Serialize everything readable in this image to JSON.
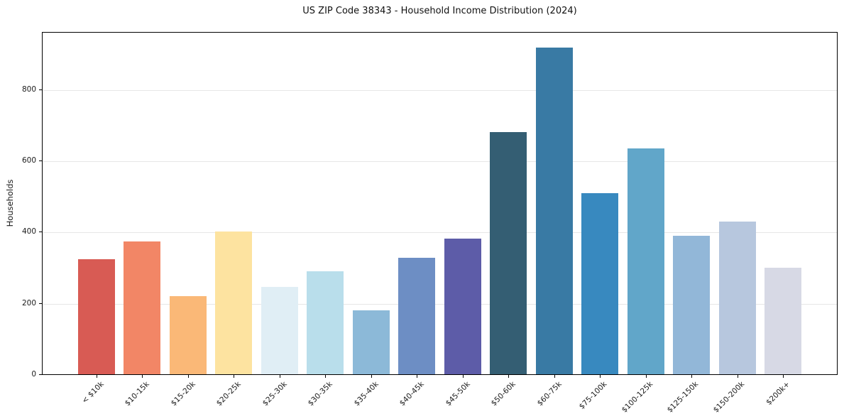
{
  "title": "US ZIP Code 38343 - Household Income Distribution (2024)",
  "chart_data": {
    "type": "bar",
    "title": "US ZIP Code 38343 - Household Income Distribution (2024)",
    "xlabel": "",
    "ylabel": "Households",
    "categories": [
      "< $10k",
      "$10-15k",
      "$15-20k",
      "$20-25k",
      "$25-30k",
      "$30-35k",
      "$35-40k",
      "$40-45k",
      "$45-50k",
      "$50-60k",
      "$60-75k",
      "$75-100k",
      "$100-125k",
      "$125-150k",
      "$150-200k",
      "$200k+"
    ],
    "values": [
      322,
      372,
      220,
      401,
      246,
      290,
      180,
      326,
      381,
      680,
      917,
      509,
      634,
      389,
      428,
      300
    ],
    "bar_colors": [
      "#d85b54",
      "#f28666",
      "#fab877",
      "#fde3a0",
      "#e0eef5",
      "#b9deeb",
      "#8cb9d8",
      "#6d8ec4",
      "#5d5ca8",
      "#345e73",
      "#397aa4",
      "#3889bf",
      "#61a6c9",
      "#92b7d8",
      "#b7c7de",
      "#d7d9e5"
    ],
    "yticks": [
      0,
      200,
      400,
      600,
      800
    ],
    "ytick_labels": [
      "0",
      "200",
      "400",
      "600",
      "800"
    ],
    "ylim": [
      0,
      963
    ],
    "grid": "horizontal",
    "grid_color": "#e7e7e7",
    "axis_color": "#000000",
    "text_color": "#1a1a1a",
    "legend": "none",
    "bar_label_rotation": 45
  }
}
